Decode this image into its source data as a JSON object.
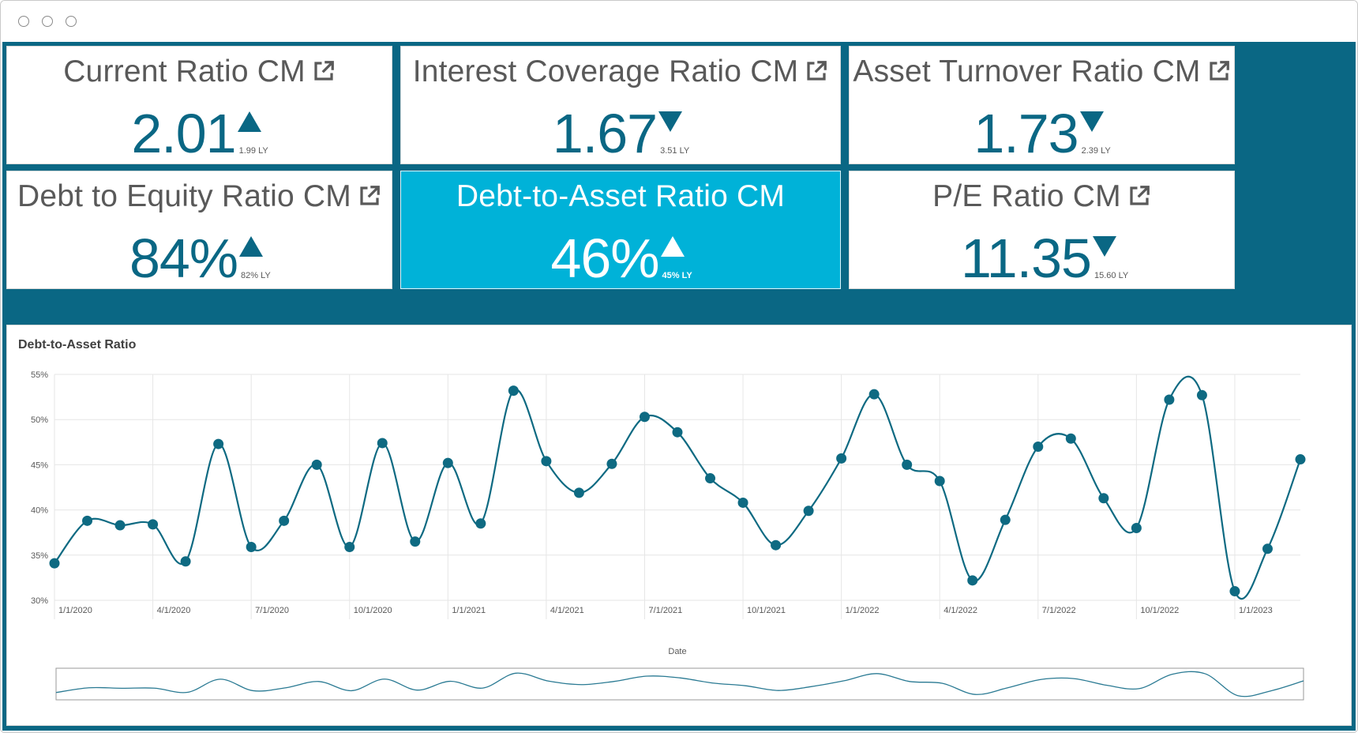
{
  "window": {
    "controls": [
      "close",
      "minimize",
      "maximize"
    ]
  },
  "kpis": [
    {
      "title": "Current Ratio CM",
      "value": "2.01",
      "trend": "up",
      "ly": "1.99 LY",
      "link_icon": "external-link-icon"
    },
    {
      "title": "Interest Coverage Ratio CM",
      "value": "1.67",
      "trend": "down",
      "ly": "3.51 LY",
      "link_icon": "external-link-icon"
    },
    {
      "title": "Asset Turnover Ratio CM",
      "value": "1.73",
      "trend": "down",
      "ly": "2.39 LY",
      "link_icon": "external-link-icon"
    },
    {
      "title": "Debt to Equity Ratio CM",
      "value": "84%",
      "trend": "up",
      "ly": "82% LY",
      "link_icon": "external-link-icon"
    },
    {
      "title": "Debt-to-Asset Ratio CM",
      "value": "46%",
      "trend": "up",
      "ly": "45% LY",
      "selected": true
    },
    {
      "title": "P/E Ratio CM",
      "value": "11.35",
      "trend": "down",
      "ly": "15.60 LY",
      "link_icon": "external-link-icon"
    }
  ],
  "colors": {
    "background": "#0a6784",
    "accent": "#0a6784",
    "selected_card": "#00b2d8",
    "line": "#0e6a82"
  },
  "chart_data": {
    "type": "line",
    "title": "Debt-to-Asset Ratio",
    "xlabel": "Date",
    "ylabel": "",
    "ylim": [
      30,
      55
    ],
    "y_ticks": [
      "55%",
      "50%",
      "45%",
      "40%",
      "35%",
      "30%"
    ],
    "x_ticks": [
      "1/1/2020",
      "4/1/2020",
      "7/1/2020",
      "10/1/2020",
      "1/1/2021",
      "4/1/2021",
      "7/1/2021",
      "10/1/2021",
      "1/1/2022",
      "4/1/2022",
      "7/1/2022",
      "10/1/2022",
      "1/1/2023"
    ],
    "grid": true,
    "has_minimap": true,
    "x": [
      "1/1/2020",
      "2/1/2020",
      "3/1/2020",
      "4/1/2020",
      "5/1/2020",
      "6/1/2020",
      "7/1/2020",
      "8/1/2020",
      "9/1/2020",
      "10/1/2020",
      "11/1/2020",
      "12/1/2020",
      "1/1/2021",
      "2/1/2021",
      "3/1/2021",
      "4/1/2021",
      "5/1/2021",
      "6/1/2021",
      "7/1/2021",
      "8/1/2021",
      "9/1/2021",
      "10/1/2021",
      "11/1/2021",
      "12/1/2021",
      "1/1/2022",
      "2/1/2022",
      "3/1/2022",
      "4/1/2022",
      "5/1/2022",
      "6/1/2022",
      "7/1/2022",
      "8/1/2022",
      "9/1/2022",
      "10/1/2022",
      "11/1/2022",
      "12/1/2022",
      "1/1/2023",
      "2/1/2023",
      "3/1/2023"
    ],
    "values": [
      34.1,
      38.8,
      38.3,
      38.4,
      34.3,
      47.3,
      35.9,
      38.8,
      45.0,
      35.9,
      47.4,
      36.5,
      45.2,
      38.5,
      53.2,
      45.4,
      41.9,
      45.1,
      50.3,
      48.6,
      43.5,
      40.8,
      36.1,
      39.9,
      45.7,
      52.8,
      45.0,
      43.2,
      32.2,
      38.9,
      47.0,
      47.9,
      41.3,
      38.0,
      52.2,
      52.7,
      31.0,
      35.7,
      45.6
    ]
  }
}
